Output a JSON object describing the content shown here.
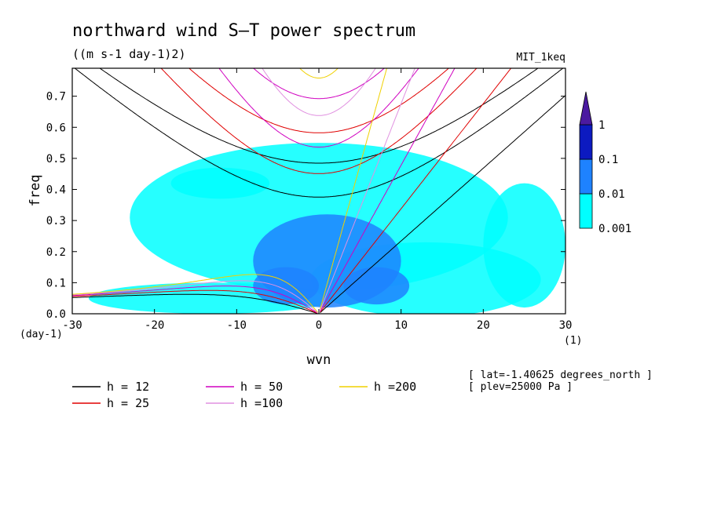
{
  "title": "northward wind S–T power spectrum",
  "units": "((m s-1 day-1)2)",
  "dataset": "MIT_1keq",
  "chart_data": {
    "type": "heatmap",
    "xlabel": "wvn",
    "ylabel": "freq",
    "x_unit": "(1)",
    "y_unit": "(day-1)",
    "xlim": [
      -30,
      30
    ],
    "ylim": [
      0,
      0.79
    ],
    "xticks": [
      "-30",
      "-20",
      "-10",
      "0",
      "10",
      "20",
      "30"
    ],
    "yticks": [
      "0.0",
      "0.1",
      "0.2",
      "0.3",
      "0.4",
      "0.5",
      "0.6",
      "0.7"
    ],
    "colorbar": {
      "levels": [
        "0.001",
        "0.01",
        "0.1",
        "1"
      ],
      "colors": [
        "#00ffff",
        "#1e82ff",
        "#0c1ac0",
        "#4b1aa0"
      ],
      "extend": "max"
    },
    "regions": [
      {
        "level": 0,
        "xc": 0,
        "yc": 0.31,
        "rx": 23,
        "ry": 0.24
      },
      {
        "level": 0,
        "xc": -13,
        "yc": 0.05,
        "rx": 15,
        "ry": 0.05
      },
      {
        "level": 0,
        "xc": 13,
        "yc": 0.11,
        "rx": 14,
        "ry": 0.12
      },
      {
        "level": 0,
        "xc": -12,
        "yc": 0.42,
        "rx": 6,
        "ry": 0.05
      },
      {
        "level": 0,
        "xc": 25,
        "yc": 0.22,
        "rx": 5,
        "ry": 0.2
      },
      {
        "level": 1,
        "xc": 1,
        "yc": 0.17,
        "rx": 9,
        "ry": 0.15
      },
      {
        "level": 1,
        "xc": -4,
        "yc": 0.09,
        "rx": 4,
        "ry": 0.06
      },
      {
        "level": 1,
        "xc": 7,
        "yc": 0.09,
        "rx": 4,
        "ry": 0.06
      }
    ],
    "curves_label": "h",
    "series": [
      {
        "name": "h = 12",
        "h": 12,
        "color": "#000000"
      },
      {
        "name": "h = 25",
        "h": 25,
        "color": "#e00000"
      },
      {
        "name": "h = 50",
        "h": 50,
        "color": "#d000c0"
      },
      {
        "name": "h =100",
        "h": 100,
        "color": "#e090e0"
      },
      {
        "name": "h =200",
        "h": 200,
        "color": "#f0d000"
      }
    ]
  },
  "footnote": {
    "lat": "[ lat=-1.40625 degrees_north ]",
    "plev": "[ plev=25000 Pa ]"
  }
}
